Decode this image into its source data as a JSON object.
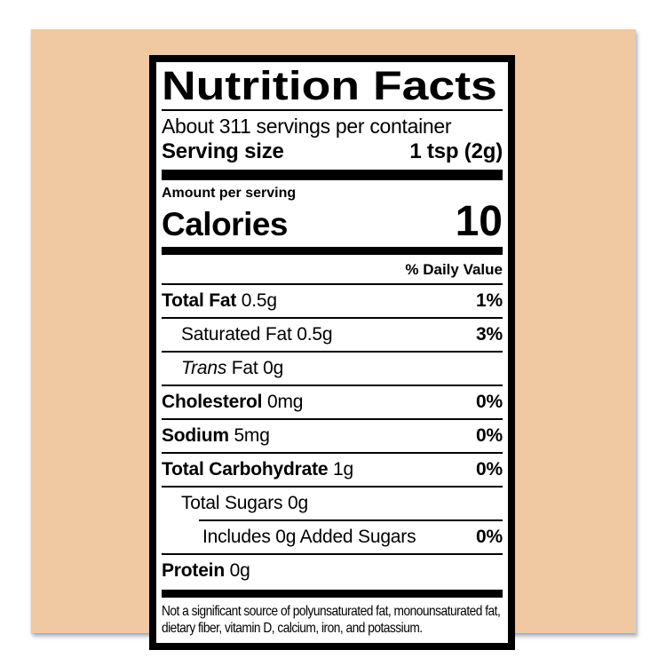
{
  "background": {
    "page_color": "#ffffff",
    "card_color": "#f0c8a2"
  },
  "label": {
    "border_color": "#000000",
    "title": "Nutrition Facts",
    "servings_per_container": "About 311 servings per container",
    "serving_size": {
      "label": "Serving size",
      "value": "1 tsp (2g)"
    },
    "amount_per_serving": "Amount per serving",
    "calories": {
      "label": "Calories",
      "value": "10"
    },
    "daily_value_header": "% Daily Value",
    "rows": [
      {
        "name": "Total Fat",
        "amount": "0.5g",
        "daily_value": "1%"
      },
      {
        "name": "Saturated Fat",
        "amount": "0.5g",
        "daily_value": ""
      },
      {
        "name_italic": "Trans",
        "name": "Fat",
        "amount": "0g",
        "daily_value": ""
      },
      {
        "name": "Cholesterol",
        "amount": "0mg",
        "daily_value": "0%"
      },
      {
        "name": "Sodium",
        "amount": "5mg",
        "daily_value": "0%"
      },
      {
        "name": "Total Carbohydrate",
        "amount": "1g",
        "daily_value": "0%"
      },
      {
        "name": "Total Sugars",
        "amount": "0g",
        "daily_value": ""
      },
      {
        "name": "Includes 0g Added Sugars",
        "amount": "",
        "daily_value": "0%"
      },
      {
        "name": "Protein",
        "amount": "0g",
        "daily_value": ""
      }
    ],
    "saturated_fat_dv": "3%",
    "footnote": "Not a significant source of polyunsaturated fat, monounsaturated fat, dietary fiber, vitamin D, calcium, iron, and potassium."
  }
}
